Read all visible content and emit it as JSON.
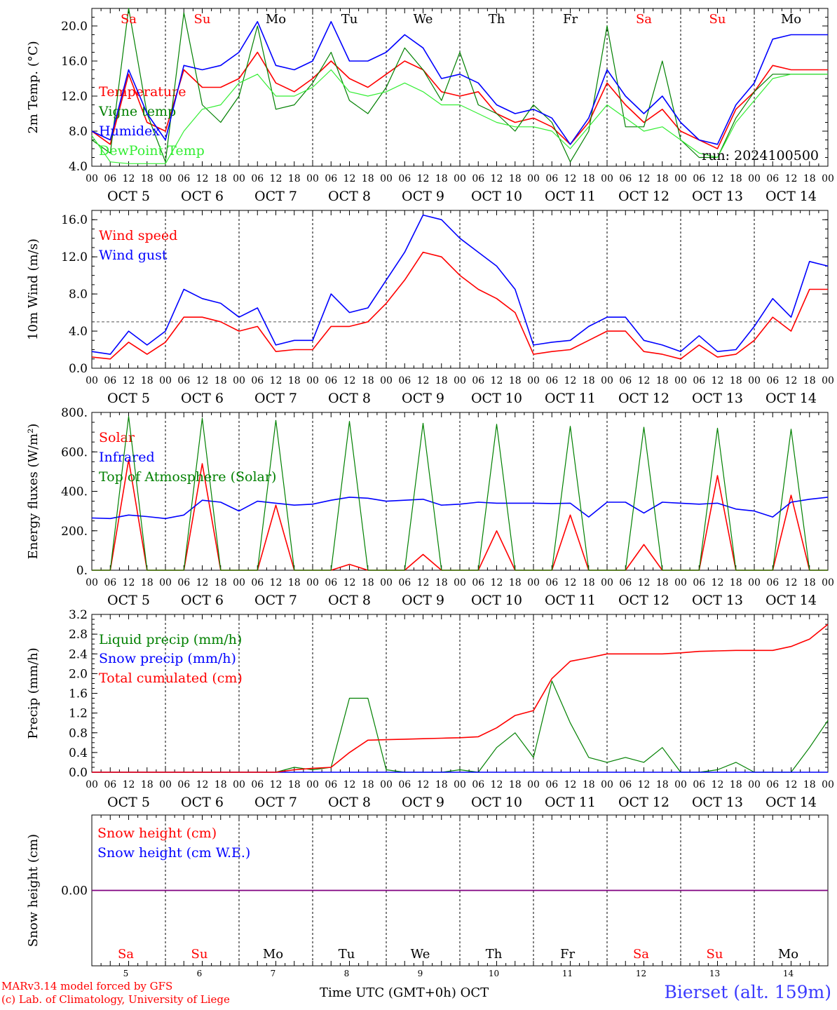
{
  "footer": {
    "credit_line1": "MARv3.14 model forced by GFS",
    "credit_line2": "(c) Lab. of Climatology, University of Liege",
    "x_axis_title": "Time UTC (GMT+0h) OCT",
    "station": "Bierset (alt. 159m)"
  },
  "colors": {
    "red": "#ff0000",
    "green": "#008000",
    "blue": "#0000ff",
    "lightgreen": "#33ee33",
    "purple": "#800080"
  },
  "day_names": [
    "Sa",
    "Su",
    "Mo",
    "Tu",
    "We",
    "Th",
    "Fr",
    "Sa",
    "Su",
    "Mo"
  ],
  "day_name_colors": [
    "red",
    "red",
    "black",
    "black",
    "black",
    "black",
    "black",
    "red",
    "red",
    "black"
  ],
  "date_labels": [
    "OCT  5",
    "OCT  6",
    "OCT  7",
    "OCT  8",
    "OCT  9",
    "OCT 10",
    "OCT 11",
    "OCT 12",
    "OCT 13",
    "OCT 14"
  ],
  "hour_labels": [
    "00",
    "06",
    "12",
    "18"
  ],
  "day_numbers": [
    "5",
    "6",
    "7",
    "8",
    "9",
    "10",
    "11",
    "12",
    "13",
    "14"
  ],
  "chart_data": [
    {
      "type": "line",
      "ylabel": "2m Temp. (°C)",
      "ylim": [
        4.0,
        22.0
      ],
      "yticks": [
        "4.0",
        "8.0",
        "12.0",
        "16.0",
        "20.0"
      ],
      "annotation": "run: 2024100500",
      "x_hours": [
        0,
        6,
        12,
        18,
        24,
        30,
        36,
        42,
        48,
        54,
        60,
        66,
        72,
        78,
        84,
        90,
        96,
        102,
        108,
        114,
        120,
        126,
        132,
        138,
        144,
        150,
        156,
        162,
        168,
        174,
        180,
        186,
        192,
        198,
        204,
        210,
        216,
        222,
        228,
        234,
        240
      ],
      "series": [
        {
          "name": "Temperature",
          "color": "red",
          "values": [
            8.0,
            6.5,
            14.5,
            9.0,
            8.0,
            15.0,
            13.0,
            13.0,
            14.0,
            17.0,
            13.5,
            12.5,
            14.0,
            16.0,
            14.0,
            13.0,
            14.5,
            16.0,
            15.0,
            12.5,
            12.0,
            12.5,
            10.0,
            9.0,
            9.5,
            8.5,
            6.5,
            9.0,
            13.5,
            11.0,
            9.0,
            10.5,
            8.0,
            7.0,
            6.0,
            10.5,
            12.5,
            15.5,
            15.0,
            15.0,
            15.0
          ]
        },
        {
          "name": "Vigne temp",
          "color": "green",
          "values": [
            7.0,
            5.5,
            22.0,
            10.0,
            4.5,
            21.5,
            11.0,
            9.0,
            12.0,
            20.0,
            10.5,
            11.0,
            13.5,
            17.0,
            11.5,
            10.0,
            13.0,
            17.5,
            15.0,
            11.5,
            17.0,
            11.0,
            10.0,
            8.0,
            11.0,
            9.0,
            4.5,
            8.0,
            20.0,
            8.5,
            8.5,
            16.0,
            7.0,
            5.0,
            5.0,
            9.5,
            12.5,
            14.5,
            14.5,
            14.5,
            14.5
          ]
        },
        {
          "name": "Humidex",
          "color": "blue",
          "values": [
            8.0,
            7.0,
            15.0,
            10.0,
            7.0,
            15.5,
            15.0,
            15.5,
            17.0,
            20.5,
            15.5,
            15.0,
            16.0,
            20.5,
            16.0,
            16.0,
            17.0,
            19.0,
            17.5,
            14.0,
            14.5,
            13.5,
            11.0,
            10.0,
            10.5,
            9.5,
            6.5,
            9.5,
            15.0,
            12.0,
            10.0,
            12.0,
            9.0,
            7.0,
            6.5,
            11.0,
            13.5,
            18.5,
            19.0,
            19.0,
            19.0
          ]
        },
        {
          "name": "DewPoint Temp",
          "color": "lightgreen",
          "values": [
            7.5,
            4.5,
            4.3,
            4.3,
            4.3,
            8.0,
            10.5,
            11.0,
            13.5,
            14.5,
            12.0,
            12.0,
            13.0,
            15.0,
            12.5,
            12.0,
            12.5,
            13.5,
            12.5,
            11.0,
            11.0,
            10.0,
            9.0,
            8.5,
            8.5,
            8.0,
            6.0,
            8.5,
            11.0,
            9.5,
            8.0,
            8.5,
            7.0,
            5.5,
            5.0,
            9.0,
            11.5,
            14.0,
            14.5,
            14.5,
            14.5
          ]
        }
      ]
    },
    {
      "type": "line",
      "ylabel": "10m Wind (m/s)",
      "ylim": [
        0.0,
        17.0
      ],
      "yticks": [
        "0.0",
        "4.0",
        "8.0",
        "12.0",
        "16.0"
      ],
      "reference_line": 5.0,
      "x_hours": [
        0,
        6,
        12,
        18,
        24,
        30,
        36,
        42,
        48,
        54,
        60,
        66,
        72,
        78,
        84,
        90,
        96,
        102,
        108,
        114,
        120,
        126,
        132,
        138,
        144,
        150,
        156,
        162,
        168,
        174,
        180,
        186,
        192,
        198,
        204,
        210,
        216,
        222,
        228,
        234,
        240
      ],
      "series": [
        {
          "name": "Wind speed",
          "color": "red",
          "values": [
            1.2,
            1.0,
            2.8,
            1.5,
            2.8,
            5.5,
            5.5,
            5.0,
            4.0,
            4.5,
            1.8,
            2.0,
            2.0,
            4.5,
            4.5,
            5.0,
            7.0,
            9.5,
            12.5,
            12.0,
            10.0,
            8.5,
            7.5,
            6.0,
            1.5,
            1.8,
            2.0,
            3.0,
            4.0,
            4.0,
            1.8,
            1.5,
            1.0,
            2.5,
            1.2,
            1.5,
            3.0,
            5.5,
            4.0,
            8.5,
            8.5
          ]
        },
        {
          "name": "Wind gust",
          "color": "blue",
          "values": [
            1.8,
            1.5,
            4.0,
            2.5,
            4.0,
            8.5,
            7.5,
            7.0,
            5.5,
            6.5,
            2.5,
            3.0,
            3.0,
            8.0,
            6.0,
            6.5,
            9.5,
            12.5,
            16.5,
            16.0,
            14.0,
            12.5,
            11.0,
            8.5,
            2.5,
            2.8,
            3.0,
            4.5,
            5.5,
            5.5,
            3.0,
            2.5,
            1.8,
            3.5,
            1.8,
            2.0,
            4.5,
            7.5,
            5.5,
            11.5,
            11.0
          ]
        }
      ]
    },
    {
      "type": "line",
      "ylabel": "Energy fluxes (W/m²)",
      "ylim": [
        0,
        800
      ],
      "yticks": [
        "0.",
        "200.",
        "400.",
        "600.",
        "800."
      ],
      "x_hours": [
        0,
        6,
        12,
        18,
        24,
        30,
        36,
        42,
        48,
        54,
        60,
        66,
        72,
        78,
        84,
        90,
        96,
        102,
        108,
        114,
        120,
        126,
        132,
        138,
        144,
        150,
        156,
        162,
        168,
        174,
        180,
        186,
        192,
        198,
        204,
        210,
        216,
        222,
        228,
        234,
        240
      ],
      "series": [
        {
          "name": "Solar",
          "color": "red",
          "values": [
            0,
            0,
            560,
            0,
            0,
            0,
            540,
            0,
            0,
            0,
            330,
            0,
            0,
            0,
            30,
            0,
            0,
            0,
            80,
            0,
            0,
            0,
            200,
            0,
            0,
            0,
            280,
            0,
            0,
            0,
            130,
            0,
            0,
            0,
            480,
            0,
            0,
            0,
            380,
            0,
            0
          ]
        },
        {
          "name": "Infrared",
          "color": "blue",
          "values": [
            265,
            262,
            280,
            272,
            262,
            280,
            355,
            345,
            300,
            350,
            340,
            330,
            335,
            355,
            370,
            365,
            350,
            355,
            360,
            330,
            335,
            345,
            340,
            340,
            340,
            338,
            340,
            270,
            345,
            345,
            290,
            345,
            340,
            335,
            340,
            310,
            300,
            270,
            345,
            360,
            370
          ]
        },
        {
          "name": "Top of Atmosphere (Solar)",
          "color": "green",
          "values": [
            0,
            0,
            780,
            0,
            0,
            0,
            770,
            0,
            0,
            0,
            760,
            0,
            0,
            0,
            755,
            0,
            0,
            0,
            745,
            0,
            0,
            0,
            740,
            0,
            0,
            0,
            730,
            0,
            0,
            0,
            725,
            0,
            0,
            0,
            720,
            0,
            0,
            0,
            715,
            0,
            0
          ]
        }
      ]
    },
    {
      "type": "line",
      "ylabel": "Precip (mm/h)",
      "ylim": [
        0.0,
        3.2
      ],
      "yticks": [
        "0.0",
        "0.4",
        "0.8",
        "1.2",
        "1.6",
        "2.0",
        "2.4",
        "2.8",
        "3.2"
      ],
      "x_hours": [
        0,
        6,
        12,
        18,
        24,
        30,
        36,
        42,
        48,
        54,
        60,
        66,
        72,
        78,
        84,
        90,
        96,
        102,
        108,
        114,
        120,
        126,
        132,
        138,
        144,
        150,
        156,
        162,
        168,
        174,
        180,
        186,
        192,
        198,
        204,
        210,
        216,
        222,
        228,
        234,
        240
      ],
      "series": [
        {
          "name": "Liquid precip (mm/h)",
          "color": "green",
          "values": [
            0,
            0,
            0,
            0,
            0,
            0,
            0,
            0,
            0,
            0,
            0,
            0.1,
            0.05,
            0.1,
            1.5,
            1.5,
            0.05,
            0,
            0,
            0,
            0.05,
            0,
            0.5,
            0.8,
            0.3,
            1.85,
            1.0,
            0.3,
            0.2,
            0.3,
            0.2,
            0.5,
            0,
            0,
            0.05,
            0.2,
            0,
            0,
            0,
            0.5,
            1.05
          ]
        },
        {
          "name": "Snow precip (mm/h)",
          "color": "blue",
          "values": [
            0,
            0,
            0,
            0,
            0,
            0,
            0,
            0,
            0,
            0,
            0,
            0,
            0,
            0,
            0,
            0,
            0,
            0,
            0,
            0,
            0,
            0,
            0,
            0,
            0,
            0,
            0,
            0,
            0,
            0,
            0,
            0,
            0,
            0,
            0,
            0,
            0,
            0,
            0,
            0,
            0
          ]
        },
        {
          "name": "Total cumulated (cm)",
          "color": "red",
          "values": [
            0,
            0,
            0,
            0,
            0,
            0,
            0,
            0,
            0,
            0,
            0,
            0.05,
            0.08,
            0.1,
            0.4,
            0.65,
            0.66,
            0.67,
            0.68,
            0.69,
            0.7,
            0.72,
            0.9,
            1.15,
            1.25,
            1.9,
            2.25,
            2.32,
            2.4,
            2.4,
            2.4,
            2.4,
            2.42,
            2.45,
            2.46,
            2.47,
            2.47,
            2.47,
            2.55,
            2.7,
            3.0
          ]
        }
      ]
    },
    {
      "type": "line",
      "ylabel": "Snow height (cm)",
      "ylim": [
        -1.0,
        1.0
      ],
      "yticks": [
        "0.00"
      ],
      "x_hours": [
        0,
        240
      ],
      "series": [
        {
          "name": "Snow height (cm)",
          "color": "red",
          "values": [
            0,
            0
          ]
        },
        {
          "name": "Snow height (cm W.E.)",
          "color": "blue",
          "values": [
            0,
            0
          ]
        }
      ]
    }
  ]
}
